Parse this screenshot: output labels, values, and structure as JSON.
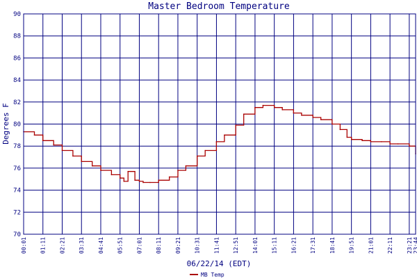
{
  "chart_data": {
    "type": "line",
    "title": "Master Bedroom Temperature",
    "xlabel": "06/22/14 (EDT)",
    "ylabel": "Degrees F",
    "ylim": [
      70,
      90
    ],
    "yticks": [
      70,
      72,
      74,
      76,
      78,
      80,
      82,
      84,
      86,
      88,
      90
    ],
    "xlim": [
      "00:01",
      "23:44"
    ],
    "xticks": [
      "00:01",
      "01:11",
      "02:21",
      "03:31",
      "04:41",
      "05:51",
      "07:01",
      "08:11",
      "09:21",
      "10:31",
      "11:41",
      "12:51",
      "14:01",
      "15:11",
      "16:21",
      "17:31",
      "18:41",
      "19:51",
      "21:01",
      "22:11",
      "23:21",
      "23:44"
    ],
    "grid": true,
    "legend": "bottom-left",
    "colors": {
      "background": "#ffffff",
      "grid": "#000080",
      "line": "#aa0000",
      "text": "#000080"
    },
    "series": [
      {
        "name": "MB Temp",
        "x": [
          "00:01",
          "00:40",
          "01:11",
          "01:50",
          "02:21",
          "03:00",
          "03:31",
          "04:10",
          "04:41",
          "05:20",
          "05:51",
          "06:05",
          "06:20",
          "06:45",
          "07:01",
          "07:15",
          "07:40",
          "08:11",
          "08:50",
          "09:21",
          "09:50",
          "10:31",
          "11:00",
          "11:41",
          "12:10",
          "12:51",
          "13:20",
          "14:01",
          "14:30",
          "15:11",
          "15:40",
          "16:21",
          "16:50",
          "17:31",
          "18:00",
          "18:41",
          "19:10",
          "19:35",
          "19:51",
          "20:30",
          "21:01",
          "21:40",
          "22:11",
          "22:40",
          "23:21",
          "23:44"
        ],
        "y": [
          79.3,
          79.0,
          78.5,
          78.1,
          77.6,
          77.1,
          76.6,
          76.2,
          75.8,
          75.4,
          75.1,
          74.8,
          75.7,
          74.9,
          74.8,
          74.7,
          74.7,
          74.9,
          75.2,
          75.8,
          76.2,
          77.1,
          77.6,
          78.4,
          79.0,
          79.9,
          80.9,
          81.5,
          81.7,
          81.5,
          81.3,
          81.0,
          80.8,
          80.6,
          80.4,
          80.0,
          79.5,
          78.8,
          78.6,
          78.5,
          78.4,
          78.4,
          78.2,
          78.2,
          78.0,
          77.3
        ]
      }
    ]
  }
}
